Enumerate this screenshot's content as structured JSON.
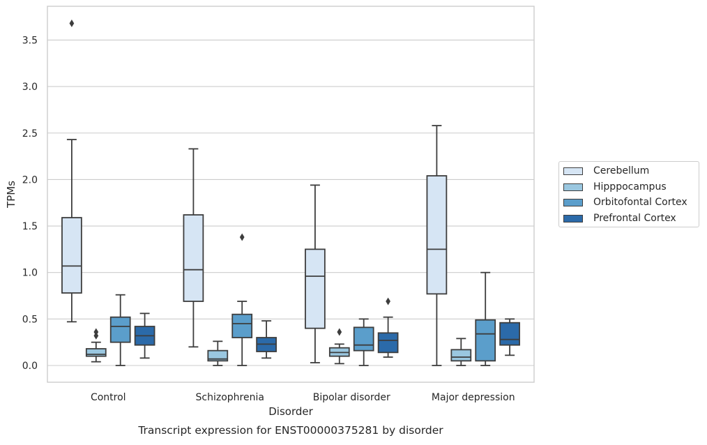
{
  "chart_data": {
    "type": "box",
    "title": "Transcript expression for ENST00000375281 by disorder",
    "xlabel": "Disorder",
    "ylabel": "TPMs",
    "ylim": [
      -0.18,
      3.88
    ],
    "yticks": [
      "0.0",
      "0.5",
      "1.0",
      "1.5",
      "2.0",
      "2.5",
      "3.0",
      "3.5"
    ],
    "grid": "horizontal",
    "legend_placement": "right",
    "categories": [
      "Control",
      "Schizophrenia",
      "Bipolar disorder",
      "Major depression"
    ],
    "series": [
      {
        "name": "Cerebellum",
        "color": "#d6e5f4",
        "boxes": [
          {
            "whislo": 0.47,
            "q1": 0.78,
            "med": 1.07,
            "q3": 1.59,
            "whishi": 2.43,
            "fliers": [
              3.68
            ]
          },
          {
            "whislo": 0.2,
            "q1": 0.69,
            "med": 1.03,
            "q3": 1.62,
            "whishi": 2.33,
            "fliers": []
          },
          {
            "whislo": 0.03,
            "q1": 0.4,
            "med": 0.96,
            "q3": 1.25,
            "whishi": 1.94,
            "fliers": []
          },
          {
            "whislo": 0.0,
            "q1": 0.77,
            "med": 1.25,
            "q3": 2.04,
            "whishi": 2.58,
            "fliers": []
          }
        ]
      },
      {
        "name": "Hipppocampus",
        "color": "#9ac7e0",
        "boxes": [
          {
            "whislo": 0.04,
            "q1": 0.1,
            "med": 0.12,
            "q3": 0.18,
            "whishi": 0.25,
            "fliers": [
              0.32,
              0.36
            ]
          },
          {
            "whislo": 0.0,
            "q1": 0.05,
            "med": 0.07,
            "q3": 0.16,
            "whishi": 0.26,
            "fliers": []
          },
          {
            "whislo": 0.02,
            "q1": 0.1,
            "med": 0.14,
            "q3": 0.19,
            "whishi": 0.23,
            "fliers": [
              0.36
            ]
          },
          {
            "whislo": 0.0,
            "q1": 0.05,
            "med": 0.09,
            "q3": 0.17,
            "whishi": 0.29,
            "fliers": []
          }
        ]
      },
      {
        "name": "Orbitofontal Cortex",
        "color": "#5b9ecb",
        "boxes": [
          {
            "whislo": 0.0,
            "q1": 0.25,
            "med": 0.42,
            "q3": 0.52,
            "whishi": 0.76,
            "fliers": []
          },
          {
            "whislo": 0.0,
            "q1": 0.3,
            "med": 0.45,
            "q3": 0.55,
            "whishi": 0.69,
            "fliers": [
              1.38
            ]
          },
          {
            "whislo": 0.0,
            "q1": 0.16,
            "med": 0.22,
            "q3": 0.41,
            "whishi": 0.5,
            "fliers": []
          },
          {
            "whislo": 0.0,
            "q1": 0.05,
            "med": 0.34,
            "q3": 0.49,
            "whishi": 1.0,
            "fliers": []
          }
        ]
      },
      {
        "name": "Prefrontal Cortex",
        "color": "#2b6aa9",
        "boxes": [
          {
            "whislo": 0.08,
            "q1": 0.22,
            "med": 0.32,
            "q3": 0.42,
            "whishi": 0.56,
            "fliers": []
          },
          {
            "whislo": 0.08,
            "q1": 0.15,
            "med": 0.23,
            "q3": 0.3,
            "whishi": 0.48,
            "fliers": []
          },
          {
            "whislo": 0.09,
            "q1": 0.14,
            "med": 0.27,
            "q3": 0.35,
            "whishi": 0.52,
            "fliers": [
              0.69
            ]
          },
          {
            "whislo": 0.11,
            "q1": 0.22,
            "med": 0.28,
            "q3": 0.46,
            "whishi": 0.5,
            "fliers": []
          }
        ]
      }
    ]
  }
}
